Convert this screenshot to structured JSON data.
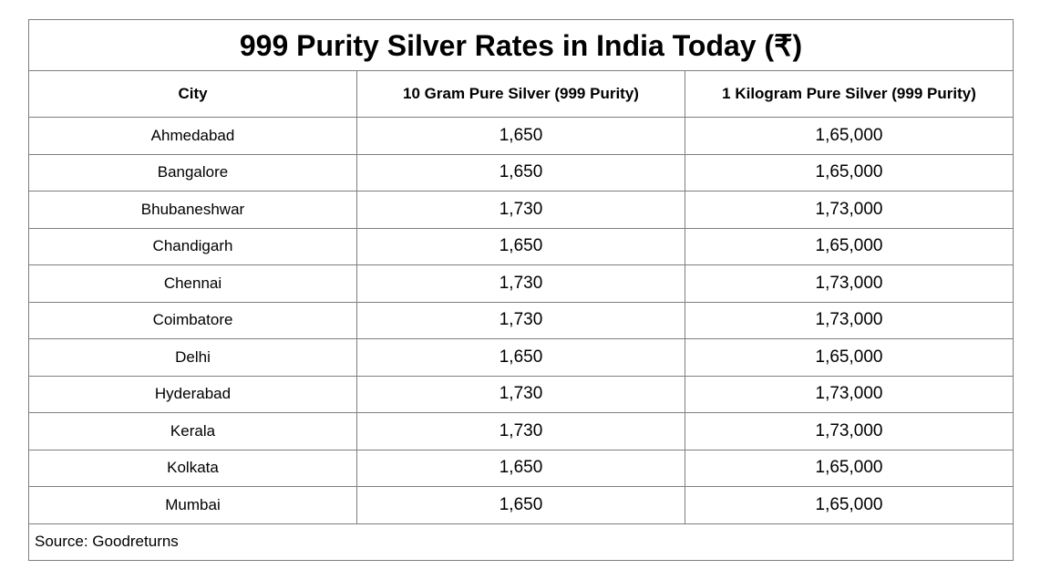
{
  "table": {
    "title": "999 Purity Silver Rates in India Today (₹)",
    "headers": {
      "city": "City",
      "ten_gram": "10 Gram Pure Silver (999 Purity)",
      "one_kg": "1 Kilogram Pure Silver (999 Purity)"
    },
    "rows": [
      {
        "city": "Ahmedabad",
        "ten_gram": "1,650",
        "one_kg": "1,65,000"
      },
      {
        "city": "Bangalore",
        "ten_gram": "1,650",
        "one_kg": "1,65,000"
      },
      {
        "city": "Bhubaneshwar",
        "ten_gram": "1,730",
        "one_kg": "1,73,000"
      },
      {
        "city": "Chandigarh",
        "ten_gram": "1,650",
        "one_kg": "1,65,000"
      },
      {
        "city": "Chennai",
        "ten_gram": "1,730",
        "one_kg": "1,73,000"
      },
      {
        "city": "Coimbatore",
        "ten_gram": "1,730",
        "one_kg": "1,73,000"
      },
      {
        "city": "Delhi",
        "ten_gram": "1,650",
        "one_kg": "1,65,000"
      },
      {
        "city": "Hyderabad",
        "ten_gram": "1,730",
        "one_kg": "1,73,000"
      },
      {
        "city": "Kerala",
        "ten_gram": "1,730",
        "one_kg": "1,73,000"
      },
      {
        "city": "Kolkata",
        "ten_gram": "1,650",
        "one_kg": "1,65,000"
      },
      {
        "city": "Mumbai",
        "ten_gram": "1,650",
        "one_kg": "1,65,000"
      }
    ],
    "source": "Source: Goodreturns"
  },
  "colors": {
    "border": "#7f7f7f",
    "text": "#000000",
    "background": "#ffffff"
  }
}
